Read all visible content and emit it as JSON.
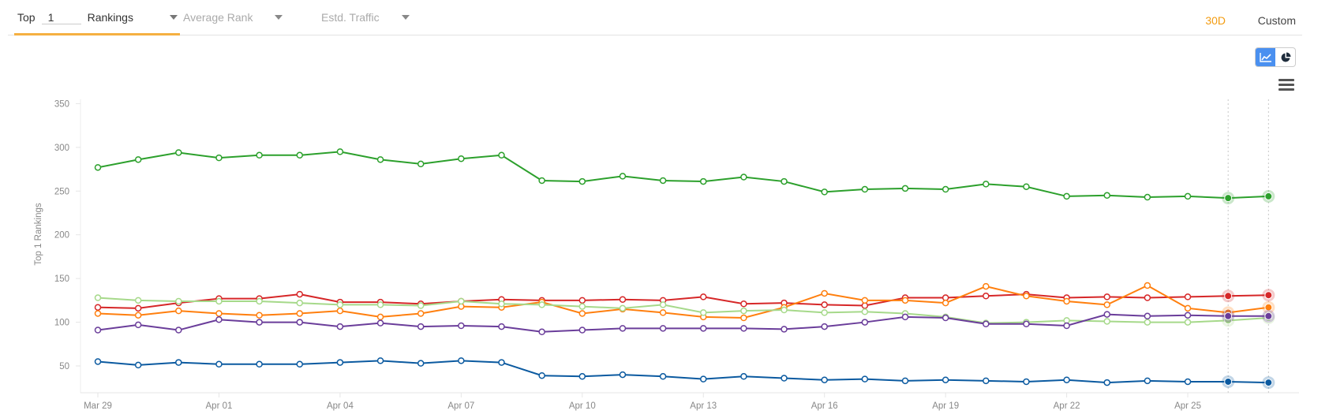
{
  "toolbar": {
    "metrics": [
      {
        "prefix": "Top",
        "topn": "1",
        "label": "Rankings",
        "active": true
      },
      {
        "label": "Average Rank",
        "active": false
      },
      {
        "label": "Estd. Traffic",
        "active": false
      }
    ],
    "ranges": [
      {
        "label": "30D",
        "active": true
      },
      {
        "label": "Custom",
        "active": false
      }
    ],
    "view_toggle": [
      {
        "icon": "line-chart-icon",
        "active": true
      },
      {
        "icon": "pie-chart-icon",
        "active": false
      }
    ],
    "menu_icon": "hamburger-menu-icon"
  },
  "colors": {
    "accent": "#f39c12",
    "underline": "#f5b041",
    "toggle_on": "#4a90f0"
  },
  "chart_data": {
    "type": "line",
    "title": "",
    "xlabel": "",
    "ylabel": "Top 1 Rankings",
    "ylim": [
      25,
      350
    ],
    "yticks": [
      50,
      100,
      150,
      200,
      250,
      300,
      350
    ],
    "xtick_labels": [
      "Mar 29",
      "Apr 01",
      "Apr 04",
      "Apr 07",
      "Apr 10",
      "Apr 13",
      "Apr 16",
      "Apr 19",
      "Apr 22",
      "Apr 25"
    ],
    "x": [
      "Mar 29",
      "Mar 30",
      "Mar 31",
      "Apr 01",
      "Apr 02",
      "Apr 03",
      "Apr 04",
      "Apr 05",
      "Apr 06",
      "Apr 07",
      "Apr 08",
      "Apr 09",
      "Apr 10",
      "Apr 11",
      "Apr 12",
      "Apr 13",
      "Apr 14",
      "Apr 15",
      "Apr 16",
      "Apr 17",
      "Apr 18",
      "Apr 19",
      "Apr 20",
      "Apr 21",
      "Apr 22",
      "Apr 23",
      "Apr 24",
      "Apr 25",
      "Apr 26",
      "Apr 27"
    ],
    "grid": false,
    "legend": "none",
    "highlighted_points": [
      "Apr 26",
      "Apr 27"
    ],
    "series": [
      {
        "name": "Series 1 (dark green)",
        "color": "#2ca02c",
        "values": [
          277,
          286,
          294,
          288,
          291,
          291,
          295,
          286,
          281,
          287,
          291,
          262,
          261,
          267,
          262,
          261,
          266,
          261,
          249,
          252,
          253,
          252,
          258,
          255,
          244,
          245,
          243,
          244,
          242,
          244
        ]
      },
      {
        "name": "Series 2 (red)",
        "color": "#d62728",
        "values": [
          117,
          116,
          122,
          127,
          127,
          132,
          123,
          123,
          121,
          124,
          126,
          125,
          125,
          126,
          125,
          129,
          121,
          122,
          120,
          119,
          128,
          128,
          130,
          132,
          128,
          129,
          128,
          129,
          130,
          131
        ]
      },
      {
        "name": "Series 3 (orange)",
        "color": "#ff7f0e",
        "values": [
          110,
          108,
          113,
          110,
          108,
          110,
          113,
          106,
          110,
          118,
          117,
          123,
          110,
          115,
          111,
          106,
          105,
          117,
          133,
          125,
          125,
          122,
          141,
          130,
          124,
          120,
          142,
          116,
          111,
          117
        ]
      },
      {
        "name": "Series 4 (light green)",
        "color": "#a6d98a",
        "values": [
          128,
          125,
          124,
          124,
          124,
          122,
          120,
          120,
          119,
          124,
          121,
          120,
          118,
          116,
          120,
          111,
          113,
          114,
          111,
          112,
          110,
          106,
          99,
          100,
          102,
          101,
          100,
          100,
          102,
          105
        ]
      },
      {
        "name": "Series 5 (purple)",
        "color": "#6a3d9a",
        "values": [
          91,
          97,
          91,
          103,
          100,
          100,
          95,
          99,
          95,
          96,
          95,
          89,
          91,
          93,
          93,
          93,
          93,
          92,
          95,
          100,
          106,
          105,
          98,
          98,
          96,
          109,
          107,
          108,
          107,
          107
        ]
      },
      {
        "name": "Series 6 (blue)",
        "color": "#0b5aa0",
        "values": [
          55,
          51,
          54,
          52,
          52,
          52,
          54,
          56,
          53,
          56,
          54,
          39,
          38,
          40,
          38,
          35,
          38,
          36,
          34,
          35,
          33,
          34,
          33,
          32,
          34,
          31,
          33,
          32,
          32,
          31
        ]
      }
    ]
  }
}
